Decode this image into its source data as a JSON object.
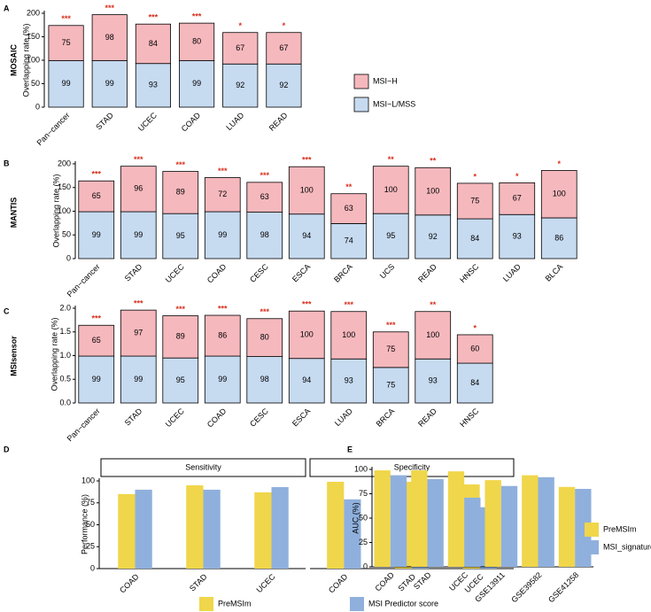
{
  "chart_data": [
    {
      "type": "bar",
      "stacked": true,
      "panel": "A",
      "side_label": "MOSAIC",
      "ylabel": "Overlapping rate (%)",
      "categories": [
        "Pan−cancer",
        "STAD",
        "UCEC",
        "COAD",
        "LUAD",
        "READ"
      ],
      "series": [
        {
          "name": "MSI−L/MSS",
          "color": "#c6daf0",
          "values": [
            99,
            99,
            93,
            99,
            92,
            92
          ]
        },
        {
          "name": "MSI−H",
          "color": "#f5b8bd",
          "values": [
            75,
            98,
            84,
            80,
            67,
            67
          ]
        }
      ],
      "annotations": [
        "***",
        "***",
        "***",
        "***",
        "*",
        "*"
      ],
      "ylim": [
        0,
        200
      ],
      "yticks": [
        0,
        50,
        100,
        150,
        200
      ],
      "legend": "right"
    },
    {
      "type": "bar",
      "stacked": true,
      "panel": "B",
      "side_label": "MANTIS",
      "ylabel": "Overlapping rate (%)",
      "categories": [
        "Pan−cancer",
        "STAD",
        "UCEC",
        "COAD",
        "CESC",
        "ESCA",
        "BRCA",
        "UCS",
        "READ",
        "HNSC",
        "LUAD",
        "BLCA"
      ],
      "series": [
        {
          "color": "#c6daf0",
          "values": [
            99,
            99,
            95,
            99,
            98,
            94,
            74,
            95,
            92,
            84,
            93,
            86
          ]
        },
        {
          "color": "#f5b8bd",
          "values": [
            65,
            96,
            89,
            72,
            63,
            100,
            63,
            100,
            100,
            75,
            67,
            100
          ]
        }
      ],
      "annotations": [
        "***",
        "***",
        "***",
        "***",
        "***",
        "***",
        "**",
        "**",
        "**",
        "*",
        "*",
        "*"
      ],
      "ylim": [
        0,
        200
      ],
      "yticks": [
        0,
        50,
        100,
        150,
        200
      ]
    },
    {
      "type": "bar",
      "stacked": true,
      "panel": "C",
      "side_label": "MSIsensor",
      "ylabel": "Overlapping rate (%)",
      "categories": [
        "Pan−cancer",
        "STAD",
        "UCEC",
        "COAD",
        "CESC",
        "ESCA",
        "LUAD",
        "BRCA",
        "READ",
        "HNSC"
      ],
      "series": [
        {
          "color": "#c6daf0",
          "values": [
            0.99,
            0.99,
            0.95,
            0.99,
            0.98,
            0.94,
            0.93,
            0.75,
            0.93,
            0.84
          ],
          "value_labels": [
            "99",
            "99",
            "95",
            "99",
            "98",
            "94",
            "93",
            "75",
            "93",
            "84"
          ]
        },
        {
          "color": "#f5b8bd",
          "values": [
            0.65,
            0.97,
            0.89,
            0.86,
            0.8,
            1.0,
            1.0,
            0.75,
            1.0,
            0.6
          ],
          "value_labels": [
            "65",
            "97",
            "89",
            "86",
            "80",
            "100",
            "100",
            "75",
            "100",
            "60"
          ]
        }
      ],
      "annotations": [
        "***",
        "***",
        "***",
        "***",
        "***",
        "***",
        "***",
        "***",
        "**",
        "*"
      ],
      "ylim": [
        0,
        2
      ],
      "yticks": [
        {
          "value": 0,
          "label": "0.0"
        },
        {
          "value": 0.5,
          "label": "0.5"
        },
        {
          "value": 1,
          "label": "1.0"
        },
        {
          "value": 1.5,
          "label": "1.5"
        },
        {
          "value": 2,
          "label": "2.0"
        }
      ]
    },
    {
      "type": "bar",
      "panel": "D",
      "ylabel": "Performance (%)",
      "facets": [
        "Sensitivity",
        "Specificity"
      ],
      "categories": [
        "COAD",
        "STAD",
        "UCEC"
      ],
      "series": [
        {
          "name": "PreMSIm",
          "color": "#f0d64a",
          "values": [
            [
              85,
              95,
              87
            ],
            [
              99,
              99,
              96
            ]
          ]
        },
        {
          "name": "MSI Predictor score",
          "color": "#8fb0dd",
          "values": [
            [
              90,
              90,
              93
            ],
            [
              79,
              75,
              70
            ]
          ]
        }
      ],
      "ylim": [
        0,
        100
      ],
      "yticks": [
        0,
        25,
        50,
        75,
        100
      ],
      "legend": "bottom"
    },
    {
      "type": "bar",
      "panel": "E",
      "ylabel": "AUC (%)",
      "categories": [
        "COAD",
        "STAD",
        "UCEC",
        "GSE13911",
        "GSE39582",
        "GSE41258"
      ],
      "series": [
        {
          "name": "PreMSIm",
          "color": "#f0d64a",
          "values": [
            99,
            99,
            98,
            89,
            94,
            82
          ]
        },
        {
          "name": "MSI_signature",
          "color": "#8fb0dd",
          "values": [
            94,
            90,
            71,
            83,
            92,
            80
          ]
        }
      ],
      "ylim": [
        0,
        100
      ],
      "yticks": [
        0,
        25,
        50,
        75,
        100
      ],
      "legend": "right"
    }
  ]
}
